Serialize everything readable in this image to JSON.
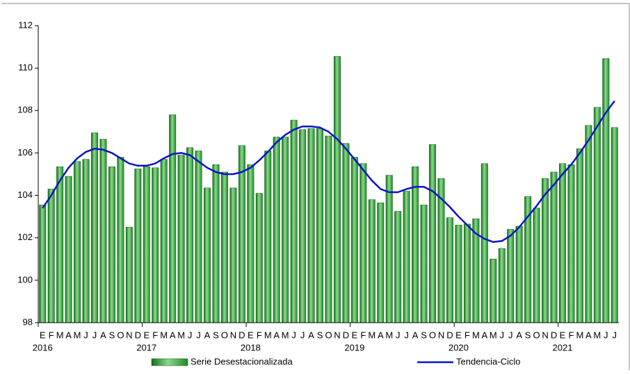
{
  "chart_data": {
    "type": "bar_line",
    "categories": [
      "E",
      "F",
      "M",
      "A",
      "M",
      "J",
      "J",
      "A",
      "S",
      "O",
      "N",
      "D",
      "E",
      "F",
      "M",
      "A",
      "M",
      "J",
      "J",
      "A",
      "S",
      "O",
      "N",
      "D",
      "E",
      "F",
      "M",
      "A",
      "M",
      "J",
      "J",
      "A",
      "S",
      "O",
      "N",
      "D",
      "E",
      "F",
      "M",
      "A",
      "M",
      "J",
      "J",
      "A",
      "S",
      "O",
      "N",
      "D",
      "E",
      "F",
      "M",
      "A",
      "M",
      "J",
      "J",
      "A",
      "S",
      "O",
      "N",
      "D",
      "E",
      "F",
      "M",
      "A",
      "M",
      "J",
      "J"
    ],
    "years": [
      "2016",
      "2017",
      "2018",
      "2019",
      "2020",
      "2021"
    ],
    "series": [
      {
        "name": "Serie Desestacionalizada",
        "type": "bar",
        "color": "#2e9e35",
        "values": [
          103.55,
          104.3,
          105.35,
          104.9,
          105.6,
          105.7,
          106.95,
          106.65,
          105.35,
          105.8,
          102.5,
          105.25,
          105.35,
          105.3,
          105.7,
          107.8,
          105.9,
          106.25,
          106.1,
          104.35,
          105.45,
          105.1,
          104.35,
          106.35,
          105.45,
          104.1,
          106.1,
          106.75,
          106.75,
          107.55,
          107.1,
          107.15,
          107.15,
          106.8,
          110.55,
          106.45,
          105.8,
          105.5,
          103.8,
          103.65,
          104.95,
          103.25,
          104.2,
          105.35,
          103.55,
          106.4,
          104.8,
          102.95,
          102.6,
          102.65,
          102.9,
          105.5,
          101.0,
          101.5,
          102.4,
          102.55,
          103.95,
          103.4,
          104.8,
          105.1,
          105.5,
          105.45,
          106.2,
          107.3,
          108.15,
          110.45,
          107.2
        ]
      },
      {
        "name": "Tendencia-Ciclo",
        "type": "line",
        "color": "#0a14c8",
        "values": [
          103.4,
          104.0,
          104.7,
          105.3,
          105.75,
          106.05,
          106.2,
          106.15,
          106.0,
          105.75,
          105.5,
          105.4,
          105.4,
          105.5,
          105.75,
          105.95,
          106.0,
          105.9,
          105.6,
          105.3,
          105.1,
          105.0,
          105.0,
          105.1,
          105.3,
          105.65,
          106.05,
          106.5,
          106.85,
          107.1,
          107.25,
          107.25,
          107.2,
          107.0,
          106.65,
          106.2,
          105.7,
          105.2,
          104.7,
          104.3,
          104.15,
          104.15,
          104.3,
          104.4,
          104.4,
          104.2,
          103.85,
          103.45,
          103.0,
          102.6,
          102.2,
          101.95,
          101.8,
          101.85,
          102.1,
          102.5,
          103.0,
          103.5,
          104.05,
          104.5,
          105.0,
          105.45,
          106.0,
          106.6,
          107.25,
          107.9,
          108.45
        ]
      }
    ],
    "ylim": [
      98,
      112
    ],
    "yticks": [
      98,
      100,
      102,
      104,
      106,
      108,
      110,
      112
    ]
  }
}
